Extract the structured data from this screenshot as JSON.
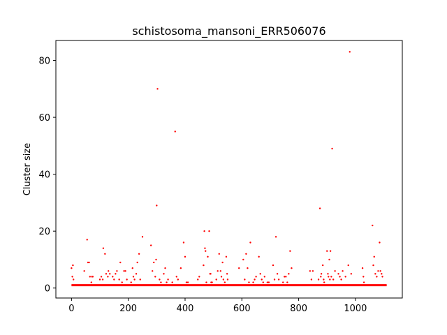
{
  "chart_data": {
    "type": "scatter",
    "title": "schistosoma_mansoni_ERR506076",
    "xlabel": "",
    "ylabel": "Cluster size",
    "xlim": [
      -55,
      1165
    ],
    "ylim": [
      -3.5,
      87
    ],
    "xticks": [
      0,
      200,
      400,
      600,
      800,
      1000
    ],
    "yticks": [
      0,
      20,
      40,
      60,
      80
    ],
    "grid": false,
    "color": "#ff0000",
    "baseline": {
      "y": 1,
      "x_start": 0,
      "x_end": 1110
    },
    "points": [
      [
        0,
        7
      ],
      [
        3,
        4
      ],
      [
        5,
        8
      ],
      [
        7,
        3
      ],
      [
        45,
        6
      ],
      [
        55,
        17
      ],
      [
        58,
        9
      ],
      [
        62,
        9
      ],
      [
        65,
        4
      ],
      [
        70,
        2
      ],
      [
        72,
        4
      ],
      [
        75,
        4
      ],
      [
        100,
        3
      ],
      [
        105,
        4
      ],
      [
        110,
        3
      ],
      [
        112,
        14
      ],
      [
        118,
        12
      ],
      [
        122,
        5
      ],
      [
        128,
        4
      ],
      [
        130,
        6
      ],
      [
        135,
        5
      ],
      [
        145,
        4
      ],
      [
        150,
        3
      ],
      [
        155,
        5
      ],
      [
        160,
        6
      ],
      [
        168,
        3
      ],
      [
        172,
        9
      ],
      [
        178,
        2
      ],
      [
        185,
        6
      ],
      [
        190,
        6
      ],
      [
        195,
        3
      ],
      [
        210,
        2
      ],
      [
        215,
        7
      ],
      [
        218,
        4
      ],
      [
        222,
        3
      ],
      [
        228,
        5
      ],
      [
        232,
        9
      ],
      [
        238,
        12
      ],
      [
        242,
        3
      ],
      [
        250,
        18
      ],
      [
        280,
        15
      ],
      [
        285,
        6
      ],
      [
        290,
        9
      ],
      [
        295,
        4
      ],
      [
        298,
        10
      ],
      [
        300,
        29
      ],
      [
        303,
        70
      ],
      [
        310,
        3
      ],
      [
        315,
        2
      ],
      [
        325,
        5
      ],
      [
        330,
        7
      ],
      [
        335,
        2
      ],
      [
        340,
        3
      ],
      [
        355,
        2
      ],
      [
        365,
        55
      ],
      [
        370,
        4
      ],
      [
        375,
        3
      ],
      [
        385,
        7
      ],
      [
        395,
        16
      ],
      [
        400,
        11
      ],
      [
        405,
        2
      ],
      [
        410,
        2
      ],
      [
        445,
        3
      ],
      [
        450,
        4
      ],
      [
        465,
        8
      ],
      [
        468,
        20
      ],
      [
        470,
        14
      ],
      [
        472,
        13
      ],
      [
        475,
        2
      ],
      [
        480,
        11
      ],
      [
        485,
        20
      ],
      [
        488,
        5
      ],
      [
        490,
        5
      ],
      [
        492,
        2
      ],
      [
        495,
        2
      ],
      [
        510,
        3
      ],
      [
        515,
        6
      ],
      [
        520,
        12
      ],
      [
        525,
        6
      ],
      [
        528,
        4
      ],
      [
        532,
        9
      ],
      [
        535,
        3
      ],
      [
        540,
        2
      ],
      [
        545,
        11
      ],
      [
        548,
        5
      ],
      [
        550,
        3
      ],
      [
        590,
        7
      ],
      [
        605,
        10
      ],
      [
        610,
        3
      ],
      [
        615,
        12
      ],
      [
        620,
        7
      ],
      [
        625,
        2
      ],
      [
        630,
        16
      ],
      [
        640,
        2
      ],
      [
        645,
        3
      ],
      [
        650,
        4
      ],
      [
        660,
        11
      ],
      [
        665,
        5
      ],
      [
        670,
        3
      ],
      [
        675,
        2
      ],
      [
        680,
        4
      ],
      [
        690,
        2
      ],
      [
        695,
        2
      ],
      [
        710,
        8
      ],
      [
        715,
        3
      ],
      [
        720,
        18
      ],
      [
        725,
        5
      ],
      [
        730,
        3
      ],
      [
        745,
        2
      ],
      [
        750,
        4
      ],
      [
        755,
        4
      ],
      [
        760,
        2
      ],
      [
        765,
        5
      ],
      [
        770,
        13
      ],
      [
        775,
        7
      ],
      [
        840,
        6
      ],
      [
        845,
        3
      ],
      [
        850,
        6
      ],
      [
        870,
        3
      ],
      [
        875,
        28
      ],
      [
        878,
        4
      ],
      [
        880,
        5
      ],
      [
        885,
        8
      ],
      [
        888,
        3
      ],
      [
        890,
        2
      ],
      [
        900,
        13
      ],
      [
        903,
        5
      ],
      [
        905,
        4
      ],
      [
        908,
        10
      ],
      [
        910,
        3
      ],
      [
        912,
        13
      ],
      [
        915,
        4
      ],
      [
        918,
        49
      ],
      [
        922,
        3
      ],
      [
        928,
        6
      ],
      [
        940,
        5
      ],
      [
        945,
        4
      ],
      [
        950,
        3
      ],
      [
        955,
        6
      ],
      [
        965,
        4
      ],
      [
        975,
        8
      ],
      [
        980,
        83
      ],
      [
        985,
        5
      ],
      [
        1025,
        7
      ],
      [
        1028,
        4
      ],
      [
        1030,
        2
      ],
      [
        1060,
        22
      ],
      [
        1063,
        8
      ],
      [
        1066,
        11
      ],
      [
        1070,
        5
      ],
      [
        1075,
        4
      ],
      [
        1080,
        6
      ],
      [
        1085,
        16
      ],
      [
        1088,
        6
      ],
      [
        1092,
        5
      ],
      [
        1095,
        4
      ]
    ]
  }
}
